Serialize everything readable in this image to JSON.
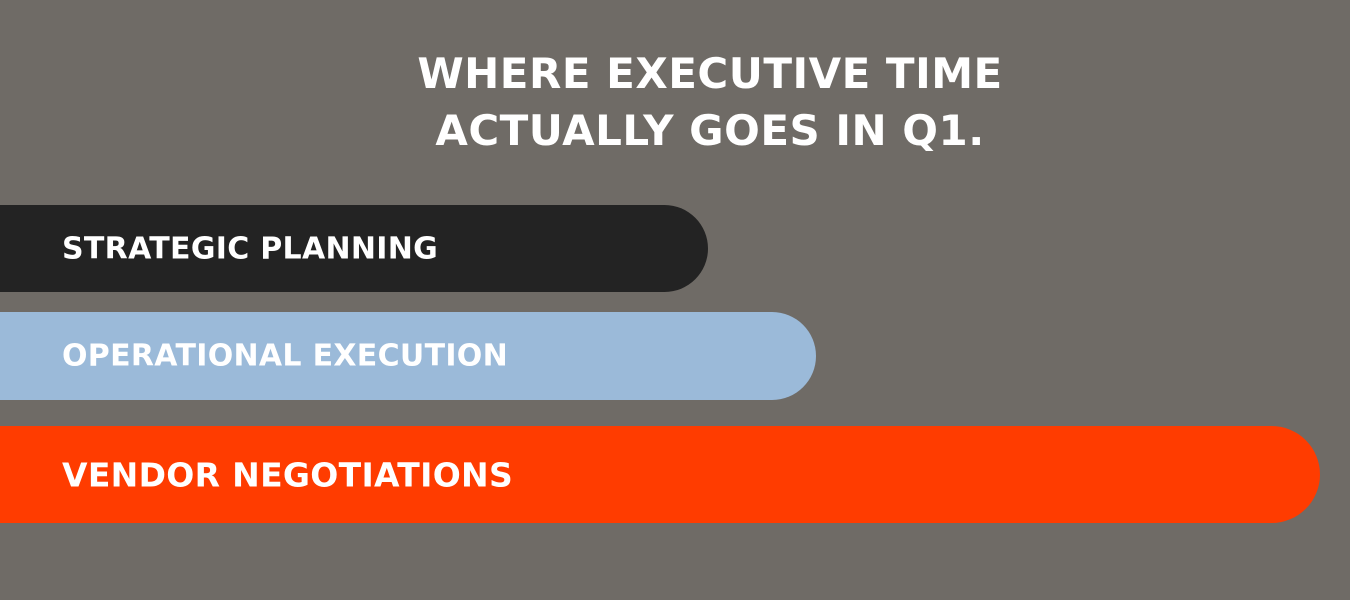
{
  "chart_data": {
    "type": "bar",
    "orientation": "horizontal",
    "title_lines": [
      "WHERE EXECUTIVE TIME",
      "ACTUALLY GOES IN Q1."
    ],
    "categories": [
      "STRATEGIC PLANNING",
      "OPERATIONAL EXECUTION",
      "VENDOR NEGOTIATIONS"
    ],
    "values": [
      52,
      60,
      97
    ],
    "colors": [
      "#232323",
      "#9bbad9",
      "#ff3c00"
    ],
    "xlim": [
      0,
      100
    ],
    "grid": false,
    "legend": "none"
  }
}
